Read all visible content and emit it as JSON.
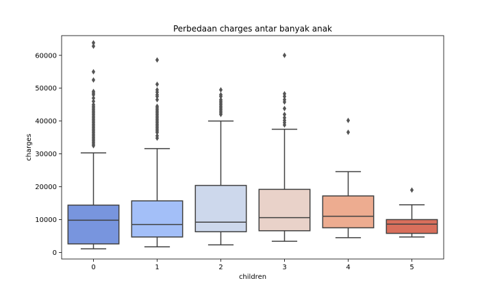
{
  "chart_data": {
    "type": "box",
    "title": "Perbedaan charges antar banyak anak",
    "xlabel": "children",
    "ylabel": "charges",
    "ylim": [
      -2000,
      66000
    ],
    "yticks": [
      0,
      10000,
      20000,
      30000,
      40000,
      50000,
      60000
    ],
    "categories": [
      "0",
      "1",
      "2",
      "3",
      "4",
      "5"
    ],
    "colors": [
      "#7895de",
      "#a3bff8",
      "#cdd8ec",
      "#e9d2c9",
      "#edac90",
      "#d96f5c"
    ],
    "boxes": [
      {
        "category": "0",
        "whisker_low": 1100,
        "q1": 2600,
        "median": 9800,
        "q3": 14400,
        "whisker_high": 30300,
        "outliers": [
          32500,
          33000,
          33500,
          34000,
          34500,
          35000,
          35500,
          36000,
          36500,
          37000,
          37500,
          38000,
          38500,
          39000,
          39500,
          40000,
          40500,
          41000,
          41500,
          42000,
          42500,
          43000,
          43500,
          44000,
          44500,
          45000,
          46000,
          47000,
          48000,
          48500,
          49000,
          52500,
          55000,
          62800,
          63800
        ]
      },
      {
        "category": "1",
        "whisker_low": 1700,
        "q1": 4700,
        "median": 8500,
        "q3": 15700,
        "whisker_high": 31600,
        "outliers": [
          34800,
          35500,
          36500,
          37000,
          37500,
          38000,
          38500,
          39000,
          39500,
          40000,
          40500,
          41000,
          41500,
          42000,
          42500,
          43000,
          43500,
          44000,
          44500,
          46500,
          47500,
          48000,
          48800,
          49500,
          51200,
          58600
        ]
      },
      {
        "category": "2",
        "whisker_low": 2300,
        "q1": 6300,
        "median": 9200,
        "q3": 20400,
        "whisker_high": 40000,
        "outliers": [
          42000,
          42500,
          43000,
          43500,
          44000,
          44500,
          45000,
          45500,
          46000,
          46500,
          47500,
          48000,
          49500
        ]
      },
      {
        "category": "3",
        "whisker_low": 3400,
        "q1": 6600,
        "median": 10600,
        "q3": 19200,
        "whisker_high": 37500,
        "outliers": [
          38800,
          39500,
          40200,
          41000,
          42000,
          43800,
          45800,
          46500,
          47500,
          48300,
          60000
        ]
      },
      {
        "category": "4",
        "whisker_low": 4500,
        "q1": 7500,
        "median": 11000,
        "q3": 17200,
        "whisker_high": 24600,
        "outliers": [
          36600,
          40200
        ]
      },
      {
        "category": "5",
        "whisker_low": 4700,
        "q1": 5800,
        "median": 8600,
        "q3": 10000,
        "whisker_high": 14500,
        "outliers": [
          19000
        ]
      }
    ],
    "grid": false,
    "legend": "none"
  }
}
